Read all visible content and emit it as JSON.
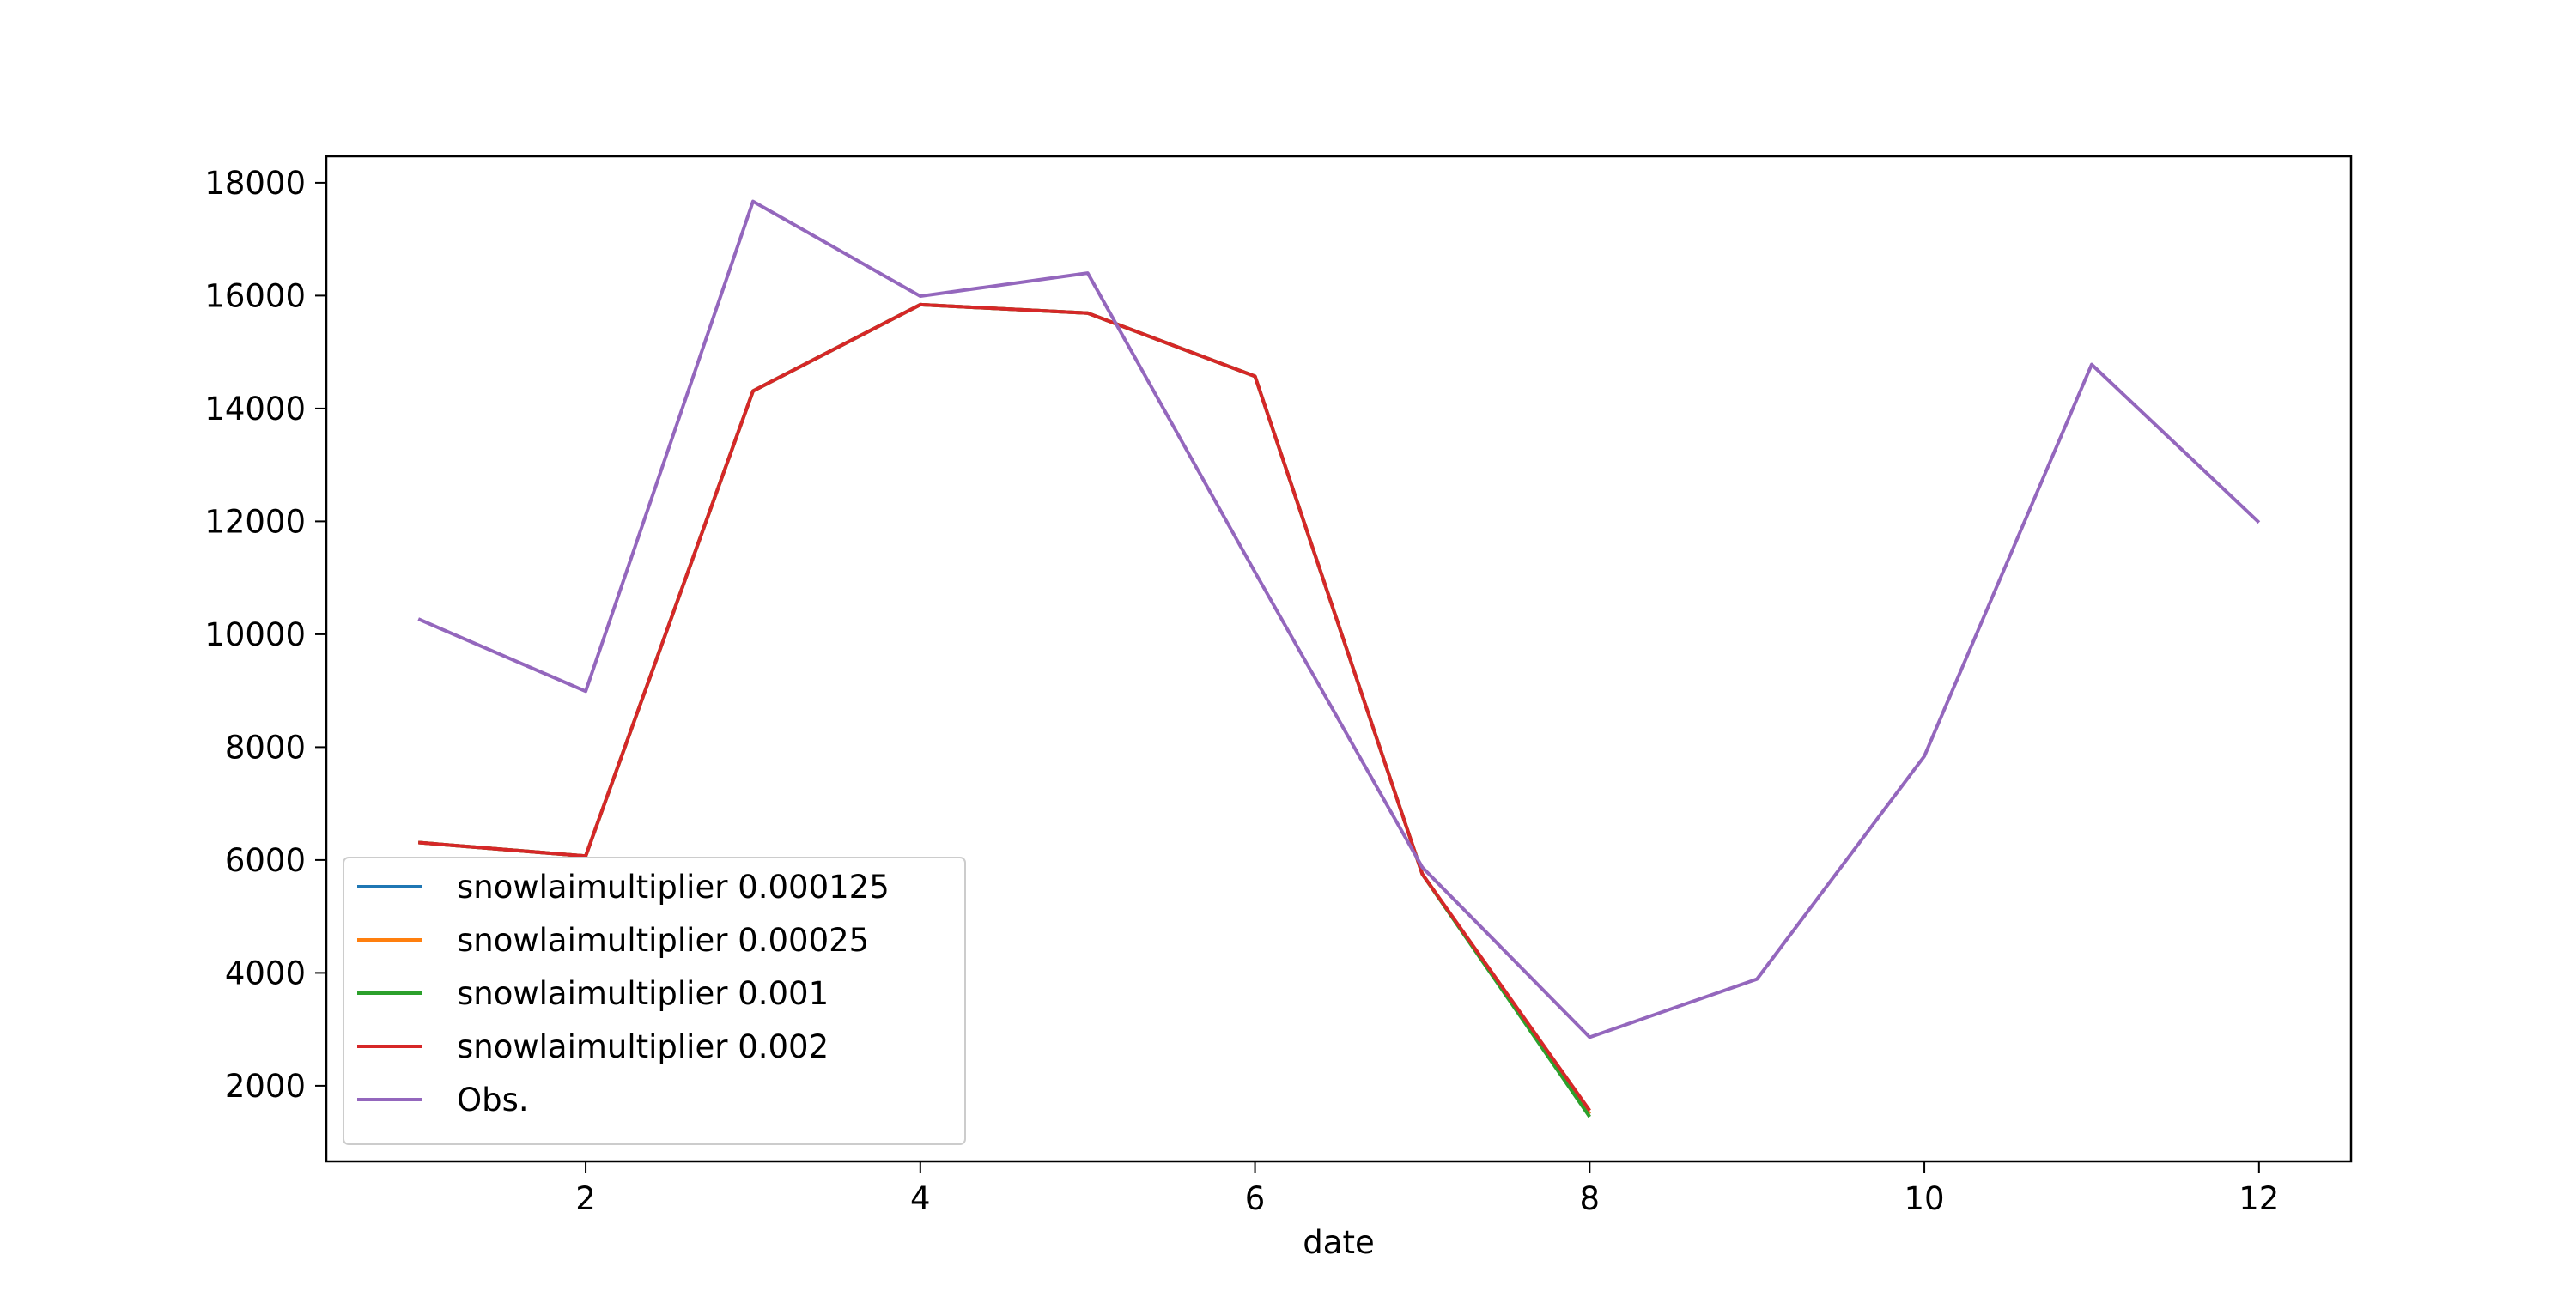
{
  "chart_data": {
    "type": "line",
    "x_label": "date",
    "x": [
      1,
      2,
      3,
      4,
      5,
      6,
      7,
      8,
      9,
      10,
      11,
      12
    ],
    "series": [
      {
        "name": "snowlaimultiplier 0.000125",
        "color": "#1f77b4",
        "values": [
          6310,
          6070,
          14310,
          15840,
          15690,
          14570,
          5750,
          1500,
          null,
          null,
          null,
          null
        ]
      },
      {
        "name": "snowlaimultiplier 0.00025",
        "color": "#ff7f0e",
        "values": [
          6310,
          6070,
          14310,
          15840,
          15690,
          14570,
          5750,
          1500,
          null,
          null,
          null,
          null
        ]
      },
      {
        "name": "snowlaimultiplier 0.001",
        "color": "#2ca02c",
        "values": [
          6310,
          6070,
          14310,
          15840,
          15690,
          14570,
          5750,
          1450,
          null,
          null,
          null,
          null
        ]
      },
      {
        "name": "snowlaimultiplier 0.002",
        "color": "#d62728",
        "values": [
          6310,
          6070,
          14310,
          15840,
          15690,
          14570,
          5750,
          1560,
          null,
          null,
          null,
          null
        ]
      },
      {
        "name": "Obs.",
        "color": "#9467bd",
        "values": [
          10270,
          8990,
          17670,
          15990,
          16400,
          11100,
          5870,
          2860,
          3890,
          7840,
          14780,
          11980
        ]
      }
    ],
    "xlim": [
      0.45,
      12.55
    ],
    "ylim": [
      660,
      18470
    ],
    "xticks": [
      2,
      4,
      6,
      8,
      10,
      12
    ],
    "yticks": [
      2000,
      4000,
      6000,
      8000,
      10000,
      12000,
      14000,
      16000,
      18000
    ],
    "legend": "lower left",
    "grid": false
  }
}
